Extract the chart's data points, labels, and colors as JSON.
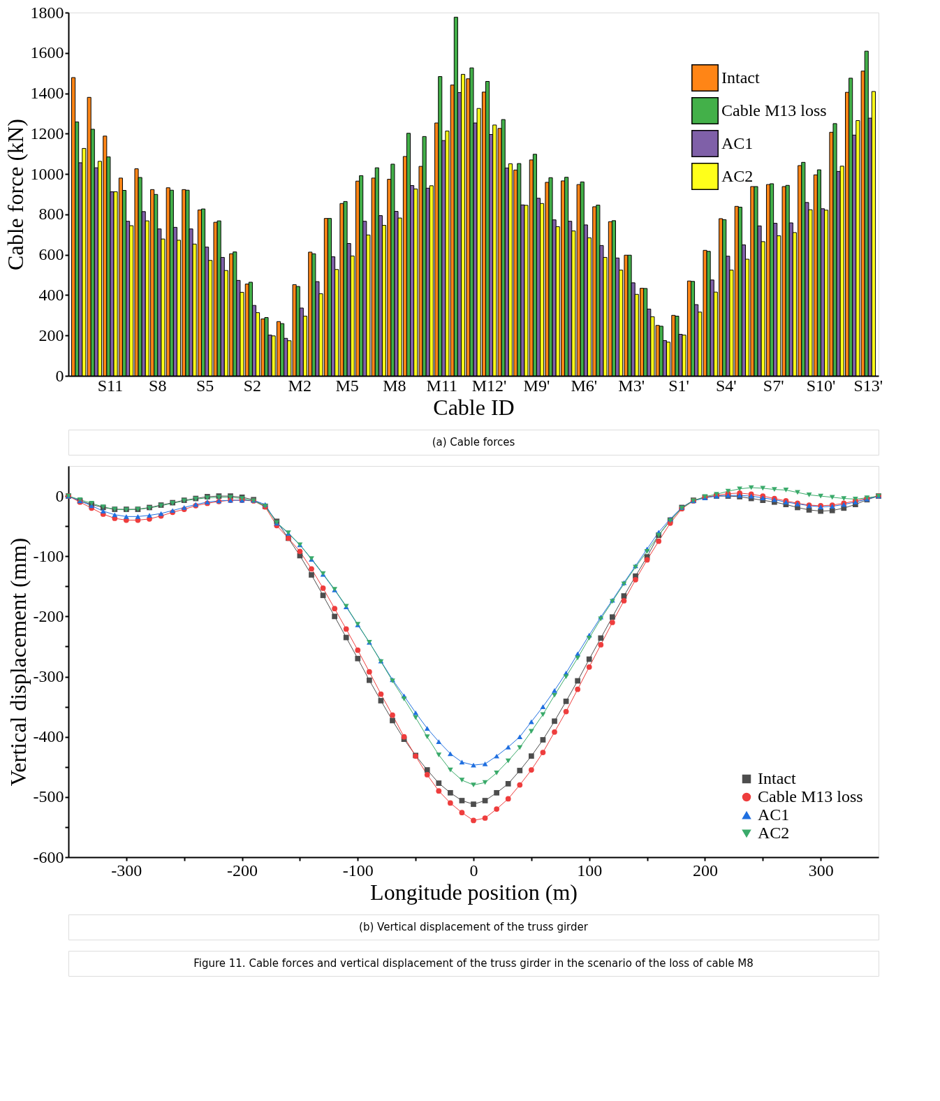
{
  "chart_data": [
    {
      "type": "bar",
      "xlabel": "Cable ID",
      "ylabel": "Cable force (kN)",
      "ylim": [
        0,
        1800
      ],
      "yticks": [
        0,
        200,
        400,
        600,
        800,
        1000,
        1200,
        1400,
        1600,
        1800
      ],
      "grid": false,
      "legend": "top right",
      "categories": [
        null,
        null,
        "S11",
        null,
        null,
        "S8",
        null,
        null,
        "S5",
        null,
        null,
        "S2",
        null,
        null,
        "M2",
        null,
        null,
        "M5",
        null,
        null,
        "M8",
        null,
        null,
        "M11",
        null,
        null,
        "M12'",
        null,
        null,
        "M9'",
        null,
        null,
        "M6'",
        null,
        null,
        "M3'",
        null,
        null,
        "S1'",
        null,
        null,
        "S4'",
        null,
        null,
        "S7'",
        null,
        null,
        "S10'",
        null,
        null,
        "S13'"
      ],
      "series": [
        {
          "name": "Intact",
          "color": "#ff8516",
          "values": [
            1478,
            1380,
            1188,
            980,
            1026,
            923,
            932,
            923,
            822,
            761,
            605,
            455,
            282,
            269,
            452,
            613,
            780,
            854,
            965,
            980,
            974,
            1087,
            1038,
            1253,
            1441,
            1472,
            1406,
            1226,
            1020,
            1070,
            959,
            966,
            948,
            838,
            764,
            598,
            434,
            250,
            300,
            470,
            622,
            779,
            840,
            938,
            948,
            938,
            1042,
            996,
            1207,
            1405,
            1510
          ]
        },
        {
          "name": "Cable M13 loss",
          "color": "#43b049",
          "values": [
            1258,
            1222,
            1085,
            919,
            983,
            899,
            920,
            920,
            827,
            768,
            614,
            464,
            289,
            259,
            443,
            605,
            780,
            864,
            992,
            1031,
            1049,
            1202,
            1186,
            1483,
            1777,
            1526,
            1459,
            1270,
            1052,
            1098,
            982,
            984,
            961,
            846,
            769,
            598,
            433,
            246,
            296,
            468,
            617,
            774,
            836,
            938,
            952,
            944,
            1058,
            1021,
            1250,
            1475,
            1609
          ]
        },
        {
          "name": "AC1",
          "color": "#7f60a8",
          "values": [
            1056,
            1031,
            912,
            766,
            814,
            728,
            736,
            728,
            638,
            587,
            473,
            349,
            202,
            186,
            336,
            467,
            590,
            656,
            766,
            794,
            815,
            943,
            930,
            1166,
            1404,
            1253,
            1196,
            1030,
            847,
            880,
            773,
            766,
            748,
            646,
            584,
            461,
            331,
            175,
            206,
            353,
            475,
            593,
            649,
            743,
            756,
            758,
            859,
            828,
            1013,
            1193,
            1277
          ]
        },
        {
          "name": "AC2",
          "color": "#ffff1a",
          "values": [
            1127,
            1063,
            912,
            744,
            768,
            678,
            672,
            653,
            572,
            522,
            414,
            313,
            198,
            174,
            296,
            407,
            527,
            594,
            698,
            746,
            782,
            926,
            942,
            1213,
            1494,
            1325,
            1243,
            1051,
            845,
            854,
            739,
            718,
            684,
            587,
            524,
            404,
            293,
            167,
            202,
            316,
            415,
            524,
            578,
            665,
            694,
            710,
            823,
            821,
            1039,
            1265,
            1409
          ]
        }
      ],
      "annotations": [
        "(a) Cable forces"
      ]
    },
    {
      "type": "line",
      "xlabel": "Longitude position (m)",
      "ylabel": "Vertical displacement (mm)",
      "xlim": [
        -350,
        350
      ],
      "ylim": [
        -600,
        50
      ],
      "xticks": [
        -300,
        {
          "value": -250,
          "label": null
        },
        -200,
        {
          "value": -150,
          "label": null
        },
        -100,
        {
          "value": -50,
          "label": null
        },
        0,
        {
          "value": 50,
          "label": null
        },
        100,
        {
          "value": 150,
          "label": null
        },
        200,
        {
          "value": 250,
          "label": null
        },
        300
      ],
      "yticks": [
        -600,
        {
          "value": -550,
          "label": null
        },
        -500,
        {
          "value": -450,
          "label": null
        },
        -400,
        {
          "value": -350,
          "label": null
        },
        -300,
        {
          "value": -250,
          "label": null
        },
        -200,
        {
          "value": -150,
          "label": null
        },
        -100,
        {
          "value": -50,
          "label": null
        },
        0
      ],
      "grid": false,
      "legend": "bottom right",
      "line_style": "solid",
      "x": [
        -350,
        -340,
        -330,
        -320,
        -310,
        -300,
        -290,
        -280,
        -270,
        -260,
        -250,
        -240,
        -230,
        -220,
        -210,
        -200,
        -190,
        -180,
        -170,
        -160,
        -150,
        -140,
        -130,
        -120,
        -110,
        -100,
        -90,
        -80,
        -70,
        -60,
        -50,
        -40,
        -30,
        -20,
        -10,
        0,
        10,
        20,
        30,
        40,
        50,
        60,
        70,
        80,
        90,
        100,
        110,
        120,
        130,
        140,
        150,
        160,
        170,
        180,
        190,
        200,
        210,
        220,
        230,
        240,
        250,
        260,
        270,
        280,
        290,
        300,
        310,
        320,
        330,
        340,
        350
      ],
      "series": [
        {
          "name": "Intact",
          "color": "#4d4d4d",
          "marker": "square",
          "values": [
            0,
            -8,
            -14,
            -19,
            -22,
            -22,
            -22,
            -19,
            -15,
            -11,
            -7,
            -4,
            -1,
            0,
            0,
            -2,
            -6,
            -17,
            -42,
            -70,
            -99,
            -131,
            -165,
            -200,
            -235,
            -270,
            -306,
            -340,
            -373,
            -404,
            -431,
            -455,
            -477,
            -493,
            -506,
            -512,
            -506,
            -493,
            -478,
            -456,
            -432,
            -405,
            -374,
            -341,
            -307,
            -271,
            -236,
            -201,
            -166,
            -133,
            -101,
            -65,
            -40,
            -19,
            -7,
            -2,
            0,
            0,
            -1,
            -4,
            -7,
            -10,
            -14,
            -19,
            -23,
            -25,
            -24,
            -20,
            -14,
            -6,
            0
          ]
        },
        {
          "name": "Cable M13 loss",
          "color": "#ee3d3d",
          "marker": "circle",
          "values": [
            0,
            -10,
            -20,
            -30,
            -37,
            -40,
            -40,
            -38,
            -33,
            -27,
            -22,
            -16,
            -12,
            -9,
            -7,
            -7,
            -8,
            -18,
            -49,
            -70,
            -92,
            -121,
            -153,
            -187,
            -221,
            -256,
            -292,
            -329,
            -364,
            -400,
            -432,
            -463,
            -490,
            -510,
            -526,
            -539,
            -535,
            -520,
            -503,
            -480,
            -455,
            -426,
            -392,
            -358,
            -321,
            -284,
            -247,
            -210,
            -174,
            -139,
            -106,
            -75,
            -45,
            -21,
            -8,
            -2,
            1,
            4,
            5,
            3,
            0,
            -4,
            -8,
            -12,
            -15,
            -16,
            -15,
            -12,
            -8,
            -4,
            0
          ]
        },
        {
          "name": "AC1",
          "color": "#1f6fe0",
          "marker": "triangle",
          "values": [
            0,
            -8,
            -16,
            -25,
            -31,
            -34,
            -34,
            -32,
            -29,
            -24,
            -19,
            -14,
            -10,
            -8,
            -7,
            -7,
            -7,
            -14,
            -45,
            -62,
            -81,
            -105,
            -130,
            -156,
            -184,
            -214,
            -243,
            -274,
            -305,
            -332,
            -360,
            -386,
            -408,
            -428,
            -442,
            -447,
            -445,
            -432,
            -417,
            -400,
            -375,
            -350,
            -323,
            -294,
            -262,
            -231,
            -201,
            -173,
            -144,
            -116,
            -88,
            -60,
            -38,
            -19,
            -8,
            -3,
            0,
            1,
            1,
            0,
            -3,
            -6,
            -10,
            -13,
            -16,
            -18,
            -17,
            -14,
            -10,
            -5,
            0
          ]
        },
        {
          "name": "AC2",
          "color": "#3aaa6a",
          "marker": "triangle-down",
          "values": [
            0,
            -6,
            -12,
            -18,
            -22,
            -23,
            -22,
            -20,
            -16,
            -12,
            -8,
            -5,
            -3,
            -2,
            -2,
            -4,
            -8,
            -17,
            -44,
            -61,
            -81,
            -104,
            -129,
            -155,
            -183,
            -213,
            -243,
            -275,
            -307,
            -337,
            -368,
            -400,
            -430,
            -455,
            -472,
            -480,
            -476,
            -460,
            -440,
            -418,
            -391,
            -363,
            -331,
            -300,
            -269,
            -236,
            -204,
            -175,
            -146,
            -118,
            -92,
            -65,
            -41,
            -20,
            -8,
            -1,
            3,
            8,
            12,
            14,
            13,
            11,
            10,
            6,
            2,
            0,
            -2,
            -4,
            -5,
            -3,
            0
          ]
        }
      ],
      "annotations": [
        "(b) Vertical displacement of the truss girder",
        "Figure 11. Cable forces and vertical displacement of the truss girder in the scenario of the loss of cable M8"
      ]
    }
  ]
}
